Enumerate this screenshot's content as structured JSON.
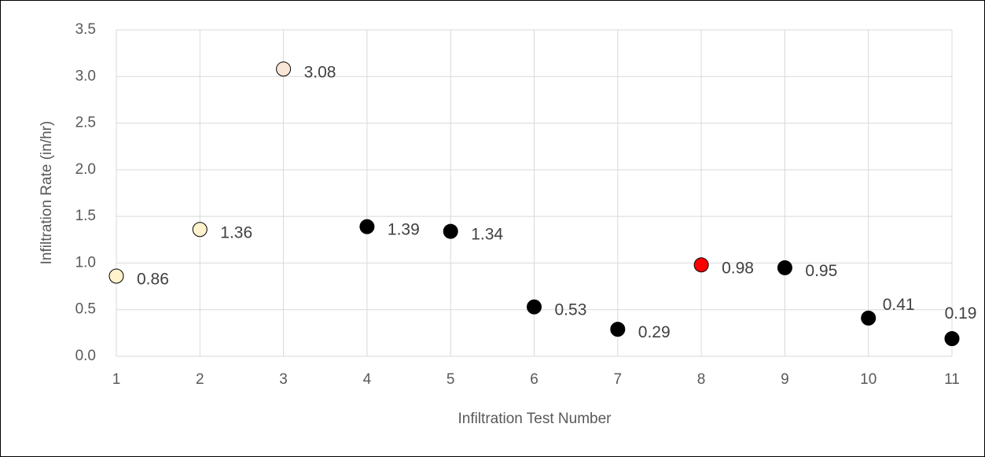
{
  "chart_data": {
    "type": "scatter",
    "x_label": "Infiltration Test Number",
    "y_label": "Infiltration Rate (in/hr)",
    "x": [
      1,
      2,
      3,
      4,
      5,
      6,
      7,
      8,
      9,
      10,
      11
    ],
    "values": [
      0.86,
      1.36,
      3.08,
      1.39,
      1.34,
      0.53,
      0.29,
      0.98,
      0.95,
      0.41,
      0.19
    ],
    "colors": [
      "#fff2cc",
      "#fff2cc",
      "#fbe5d6",
      "#000000",
      "#000000",
      "#000000",
      "#000000",
      "#ff0000",
      "#000000",
      "#000000",
      "#000000"
    ],
    "xlim": [
      1,
      11
    ],
    "xticks": [
      1,
      2,
      3,
      4,
      5,
      6,
      7,
      8,
      9,
      10,
      11
    ],
    "ylim": [
      0,
      3.5
    ],
    "yticks": [
      {
        "value": 0,
        "label": "0.0"
      },
      0.5,
      {
        "value": 1,
        "label": "1.0"
      },
      1.5,
      {
        "value": 2,
        "label": "2.0"
      },
      2.5,
      {
        "value": 3,
        "label": "3.0"
      },
      3.5
    ],
    "grid": true
  }
}
